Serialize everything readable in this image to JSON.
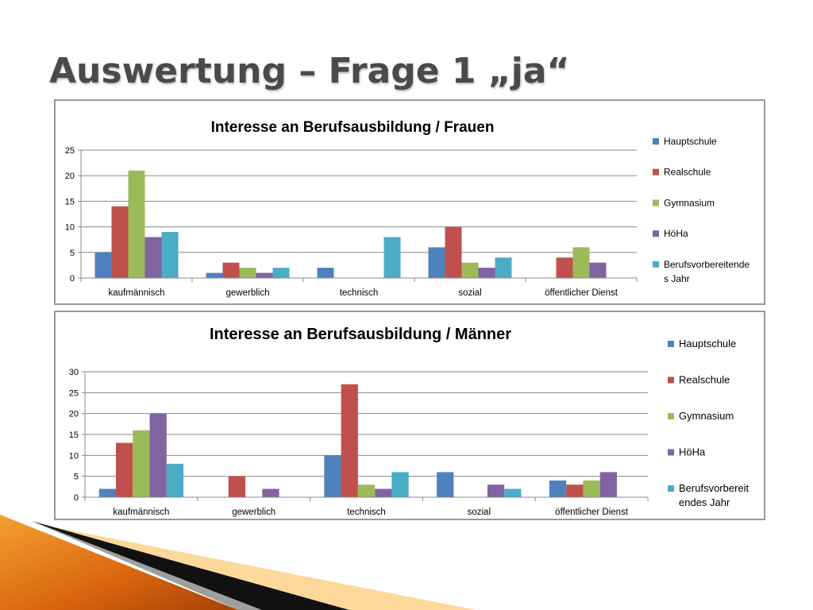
{
  "slide": {
    "title": "Auswertung – Frage 1 „ja“"
  },
  "colors": {
    "Hauptschule": "#4f81bd",
    "Realschule": "#c0504d",
    "Gymnasium": "#9bbb59",
    "HöHa": "#8064a2",
    "Berufsvorbereitendes Jahr": "#4bacc6"
  },
  "chart_data": [
    {
      "type": "bar",
      "title": "Interesse an Berufsausbildung / Frauen",
      "xlabel": "",
      "ylabel": "",
      "ylim": [
        0,
        25
      ],
      "yticks": [
        0,
        5,
        10,
        15,
        20,
        25
      ],
      "grid": true,
      "legend": "right",
      "categories": [
        "kaufmännisch",
        "gewerblich",
        "technisch",
        "sozial",
        "öffentlicher Dienst"
      ],
      "series": [
        {
          "name": "Hauptschule",
          "values": [
            5,
            1,
            2,
            6,
            0
          ]
        },
        {
          "name": "Realschule",
          "values": [
            14,
            3,
            0,
            10,
            4
          ]
        },
        {
          "name": "Gymnasium",
          "values": [
            21,
            2,
            0,
            3,
            6
          ]
        },
        {
          "name": "HöHa",
          "values": [
            8,
            1,
            0,
            2,
            3
          ]
        },
        {
          "name": "Berufsvorbereitendes Jahr",
          "values": [
            9,
            2,
            8,
            4,
            0
          ]
        }
      ],
      "legend_labels": [
        "Hauptschule",
        "Realschule",
        "Gymnasium",
        "HöHa",
        [
          "Berufsvorbereitende",
          "s Jahr"
        ]
      ]
    },
    {
      "type": "bar",
      "title": "Interesse an Berufsausbildung / Männer",
      "xlabel": "",
      "ylabel": "",
      "ylim": [
        0,
        30
      ],
      "yticks": [
        0,
        5,
        10,
        15,
        20,
        25,
        30
      ],
      "grid": true,
      "legend": "right",
      "categories": [
        "kaufmännisch",
        "gewerblich",
        "technisch",
        "sozial",
        "öffentlicher Dienst"
      ],
      "series": [
        {
          "name": "Hauptschule",
          "values": [
            2,
            0,
            10,
            6,
            4
          ]
        },
        {
          "name": "Realschule",
          "values": [
            13,
            5,
            27,
            0,
            3
          ]
        },
        {
          "name": "Gymnasium",
          "values": [
            16,
            0,
            3,
            0,
            4
          ]
        },
        {
          "name": "HöHa",
          "values": [
            20,
            2,
            2,
            3,
            6
          ]
        },
        {
          "name": "Berufsvorbereitendes Jahr",
          "values": [
            8,
            0,
            6,
            2,
            0
          ]
        }
      ],
      "legend_labels": [
        "Hauptschule",
        "Realschule",
        "Gymnasium",
        "HöHa",
        [
          "Berufsvorbereit",
          "endes Jahr"
        ]
      ]
    }
  ]
}
